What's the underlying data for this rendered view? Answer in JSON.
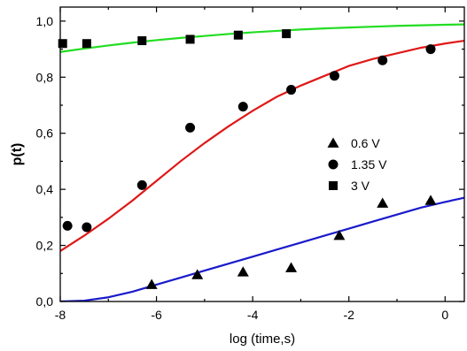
{
  "chart_data": {
    "type": "scatter",
    "xlabel": "log (time,s)",
    "ylabel": "p(t)",
    "xlim": [
      -8,
      0.4
    ],
    "ylim": [
      0,
      1.05
    ],
    "x_ticks": [
      -8,
      -6,
      -4,
      -2,
      0
    ],
    "x_tick_labels": [
      "-8",
      "-6",
      "-4",
      "-2",
      "0"
    ],
    "y_ticks": [
      0,
      0.2,
      0.4,
      0.6,
      0.8,
      1.0
    ],
    "y_tick_labels": [
      "0,0",
      "0,2",
      "0,4",
      "0,6",
      "0,8",
      "1,0"
    ],
    "grid": false,
    "legend_position": "right-middle",
    "series": [
      {
        "name": "0.6 V",
        "marker": "triangle",
        "fit_color": "#1a1acc",
        "points": [
          {
            "x": -6.1,
            "y": 0.06
          },
          {
            "x": -5.15,
            "y": 0.095
          },
          {
            "x": -4.2,
            "y": 0.105
          },
          {
            "x": -3.2,
            "y": 0.12
          },
          {
            "x": -2.2,
            "y": 0.235
          },
          {
            "x": -1.3,
            "y": 0.35
          },
          {
            "x": -0.3,
            "y": 0.36
          }
        ],
        "fit": [
          {
            "x": -8.0,
            "y": 0.0
          },
          {
            "x": -7.5,
            "y": 0.003
          },
          {
            "x": -7.0,
            "y": 0.015
          },
          {
            "x": -6.5,
            "y": 0.035
          },
          {
            "x": -6.0,
            "y": 0.06
          },
          {
            "x": -5.5,
            "y": 0.085
          },
          {
            "x": -5.0,
            "y": 0.11
          },
          {
            "x": -4.5,
            "y": 0.135
          },
          {
            "x": -4.0,
            "y": 0.16
          },
          {
            "x": -3.5,
            "y": 0.185
          },
          {
            "x": -3.0,
            "y": 0.21
          },
          {
            "x": -2.5,
            "y": 0.235
          },
          {
            "x": -2.0,
            "y": 0.26
          },
          {
            "x": -1.5,
            "y": 0.285
          },
          {
            "x": -1.0,
            "y": 0.31
          },
          {
            "x": -0.5,
            "y": 0.335
          },
          {
            "x": 0.0,
            "y": 0.355
          },
          {
            "x": 0.4,
            "y": 0.37
          }
        ]
      },
      {
        "name": "1.35 V",
        "marker": "circle",
        "fit_color": "#e01818",
        "points": [
          {
            "x": -7.85,
            "y": 0.27
          },
          {
            "x": -7.45,
            "y": 0.265
          },
          {
            "x": -6.3,
            "y": 0.415
          },
          {
            "x": -5.3,
            "y": 0.62
          },
          {
            "x": -4.2,
            "y": 0.695
          },
          {
            "x": -3.2,
            "y": 0.755
          },
          {
            "x": -2.3,
            "y": 0.805
          },
          {
            "x": -1.3,
            "y": 0.86
          },
          {
            "x": -0.3,
            "y": 0.9
          }
        ],
        "fit": [
          {
            "x": -8.0,
            "y": 0.18
          },
          {
            "x": -7.5,
            "y": 0.235
          },
          {
            "x": -7.0,
            "y": 0.295
          },
          {
            "x": -6.5,
            "y": 0.36
          },
          {
            "x": -6.0,
            "y": 0.43
          },
          {
            "x": -5.5,
            "y": 0.5
          },
          {
            "x": -5.0,
            "y": 0.565
          },
          {
            "x": -4.5,
            "y": 0.625
          },
          {
            "x": -4.0,
            "y": 0.68
          },
          {
            "x": -3.5,
            "y": 0.73
          },
          {
            "x": -3.0,
            "y": 0.77
          },
          {
            "x": -2.5,
            "y": 0.805
          },
          {
            "x": -2.0,
            "y": 0.84
          },
          {
            "x": -1.5,
            "y": 0.865
          },
          {
            "x": -1.0,
            "y": 0.885
          },
          {
            "x": -0.5,
            "y": 0.905
          },
          {
            "x": 0.0,
            "y": 0.92
          },
          {
            "x": 0.4,
            "y": 0.93
          }
        ]
      },
      {
        "name": "3 V",
        "marker": "square",
        "fit_color": "#22dd22",
        "points": [
          {
            "x": -7.95,
            "y": 0.92
          },
          {
            "x": -7.45,
            "y": 0.92
          },
          {
            "x": -6.3,
            "y": 0.93
          },
          {
            "x": -5.3,
            "y": 0.935
          },
          {
            "x": -4.3,
            "y": 0.95
          },
          {
            "x": -3.3,
            "y": 0.955
          }
        ],
        "fit": [
          {
            "x": -8.0,
            "y": 0.89
          },
          {
            "x": -7.5,
            "y": 0.902
          },
          {
            "x": -7.0,
            "y": 0.913
          },
          {
            "x": -6.5,
            "y": 0.923
          },
          {
            "x": -6.0,
            "y": 0.932
          },
          {
            "x": -5.5,
            "y": 0.94
          },
          {
            "x": -5.0,
            "y": 0.947
          },
          {
            "x": -4.5,
            "y": 0.954
          },
          {
            "x": -4.0,
            "y": 0.96
          },
          {
            "x": -3.5,
            "y": 0.965
          },
          {
            "x": -3.0,
            "y": 0.97
          },
          {
            "x": -2.5,
            "y": 0.974
          },
          {
            "x": -2.0,
            "y": 0.977
          },
          {
            "x": -1.5,
            "y": 0.98
          },
          {
            "x": -1.0,
            "y": 0.983
          },
          {
            "x": -0.5,
            "y": 0.985
          },
          {
            "x": 0.0,
            "y": 0.987
          },
          {
            "x": 0.4,
            "y": 0.988
          }
        ]
      }
    ],
    "legend_order": [
      0,
      1,
      2
    ]
  }
}
